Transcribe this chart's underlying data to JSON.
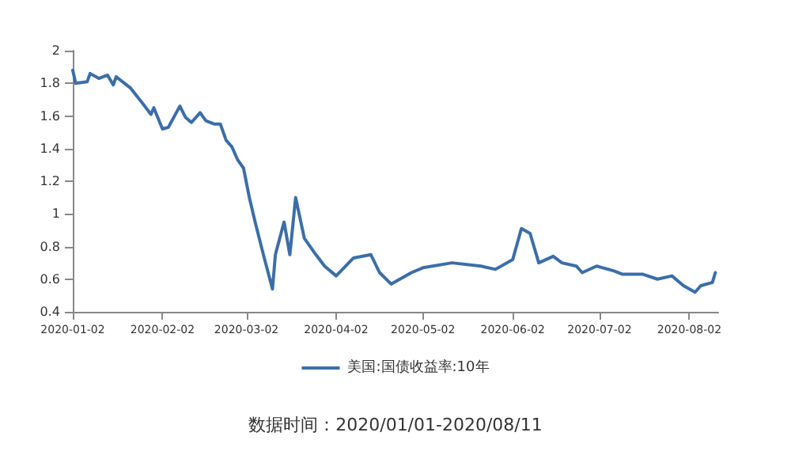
{
  "chart_data": {
    "type": "line",
    "x": [
      "2020-01-02",
      "2020-01-03",
      "2020-01-07",
      "2020-01-08",
      "2020-01-11",
      "2020-01-14",
      "2020-01-16",
      "2020-01-17",
      "2020-01-22",
      "2020-01-26",
      "2020-01-29",
      "2020-01-30",
      "2020-02-02",
      "2020-02-04",
      "2020-02-08",
      "2020-02-10",
      "2020-02-12",
      "2020-02-15",
      "2020-02-17",
      "2020-02-20",
      "2020-02-22",
      "2020-02-24",
      "2020-02-26",
      "2020-02-28",
      "2020-03-01",
      "2020-03-03",
      "2020-03-05",
      "2020-03-08",
      "2020-03-11",
      "2020-03-12",
      "2020-03-15",
      "2020-03-17",
      "2020-03-19",
      "2020-03-22",
      "2020-03-26",
      "2020-03-29",
      "2020-04-02",
      "2020-04-08",
      "2020-04-14",
      "2020-04-17",
      "2020-04-21",
      "2020-04-24",
      "2020-04-28",
      "2020-05-02",
      "2020-05-12",
      "2020-05-22",
      "2020-05-27",
      "2020-06-02",
      "2020-06-05",
      "2020-06-08",
      "2020-06-11",
      "2020-06-16",
      "2020-06-19",
      "2020-06-24",
      "2020-06-26",
      "2020-07-01",
      "2020-07-07",
      "2020-07-10",
      "2020-07-17",
      "2020-07-22",
      "2020-07-27",
      "2020-07-31",
      "2020-08-04",
      "2020-08-06",
      "2020-08-10",
      "2020-08-11"
    ],
    "series": [
      {
        "name": "美国:国债收益率:10年",
        "color": "#3b6ea8",
        "values": [
          1.88,
          1.8,
          1.81,
          1.86,
          1.83,
          1.85,
          1.79,
          1.84,
          1.77,
          1.68,
          1.61,
          1.65,
          1.52,
          1.53,
          1.66,
          1.59,
          1.56,
          1.62,
          1.57,
          1.55,
          1.55,
          1.45,
          1.41,
          1.33,
          1.28,
          1.1,
          0.95,
          0.74,
          0.54,
          0.75,
          0.95,
          0.75,
          1.1,
          0.85,
          0.75,
          0.68,
          0.62,
          0.73,
          0.75,
          0.64,
          0.57,
          0.6,
          0.64,
          0.67,
          0.7,
          0.68,
          0.66,
          0.72,
          0.91,
          0.88,
          0.7,
          0.74,
          0.7,
          0.68,
          0.64,
          0.68,
          0.65,
          0.63,
          0.63,
          0.6,
          0.62,
          0.56,
          0.52,
          0.56,
          0.58,
          0.64
        ]
      }
    ],
    "xlim": [
      "2020-01-02",
      "2020-08-12"
    ],
    "xticks": [
      "2020-01-02",
      "2020-02-02",
      "2020-03-02",
      "2020-04-02",
      "2020-05-02",
      "2020-06-02",
      "2020-07-02",
      "2020-08-02"
    ],
    "ylim": [
      0.4,
      2
    ],
    "yticks": [
      0.4,
      0.6,
      0.8,
      1,
      1.2,
      1.4,
      1.6,
      1.8,
      2
    ],
    "grid": false,
    "legend": "bottom",
    "marker": "none",
    "line_style": "solid",
    "annotations": [
      "数据时间：2020/01/01-2020/08/11"
    ]
  }
}
